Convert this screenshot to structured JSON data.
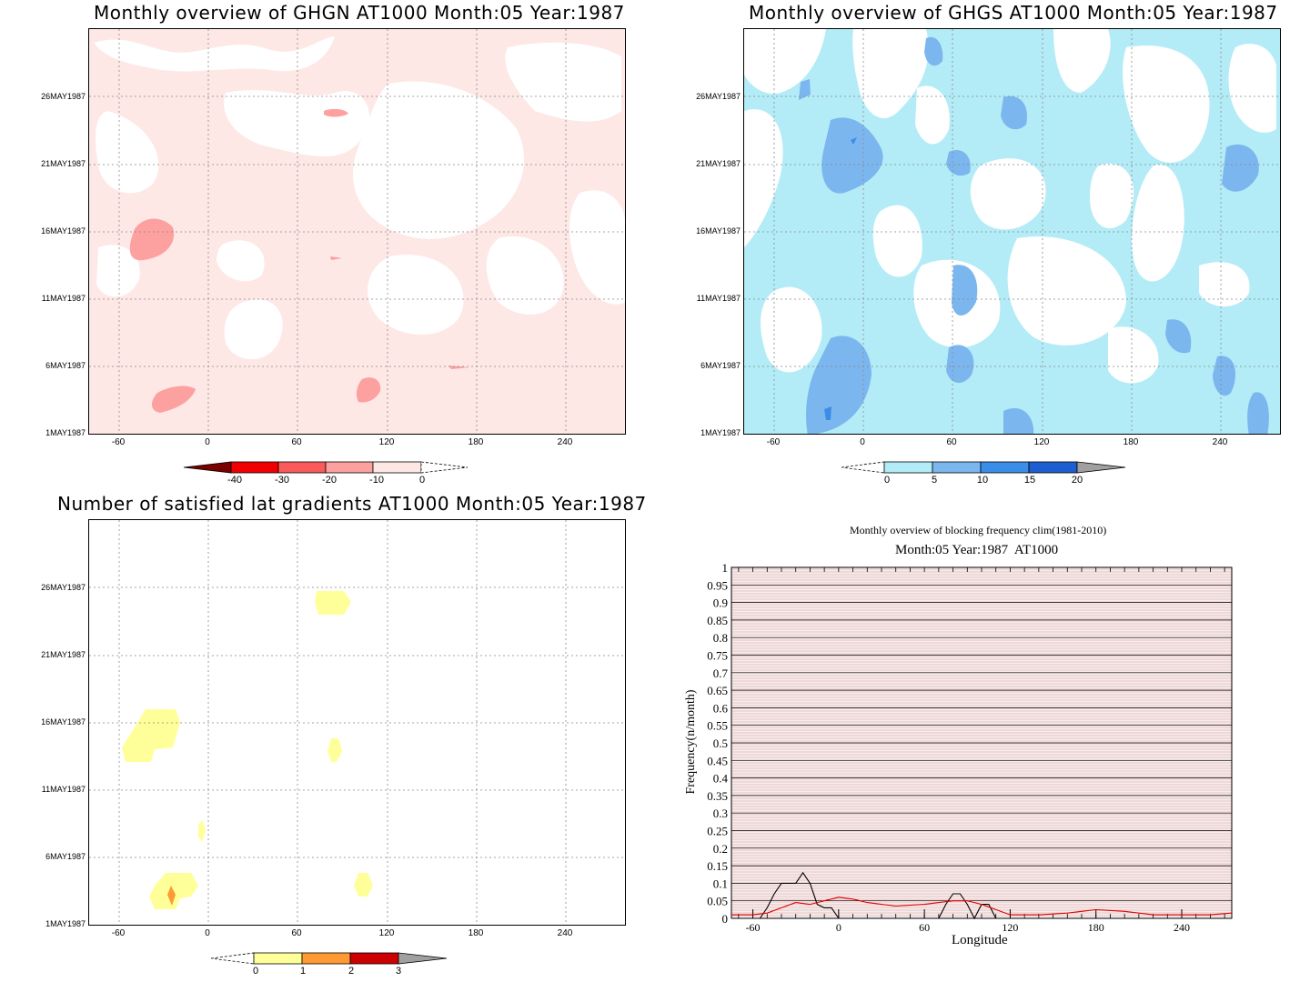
{
  "panels": {
    "ghgn": {
      "title": "Monthly overview of GHGN AT1000 Month:05 Year:1987",
      "colorbar_labels": [
        "-40",
        "-30",
        "-20",
        "-10",
        "0"
      ],
      "colors": {
        "c0": "#fde8e6",
        "c1": "#fca0a0",
        "c2": "#fa5a5a",
        "c3": "#f00000",
        "c4": "#7a0000"
      }
    },
    "ghgs": {
      "title": "Monthly overview of GHGS AT1000 Month:05 Year:1987",
      "colorbar_labels": [
        "0",
        "5",
        "10",
        "15",
        "20"
      ],
      "colors": {
        "c0": "#b3ecf7",
        "c1": "#7bb6ef",
        "c2": "#3b8ee8",
        "c3": "#1d5fd0",
        "over": "#a0a0a0"
      }
    },
    "gradients": {
      "title": "Number of satisfied lat gradients AT1000 Month:05 Year:1987",
      "colorbar_labels": [
        "0",
        "1",
        "2",
        "3"
      ],
      "colors": {
        "c0": "#ffff99",
        "c1": "#ff9933",
        "c2": "#cc0000",
        "over": "#a0a0a0"
      }
    }
  },
  "y_ticks": [
    "26MAY1987",
    "21MAY1987",
    "16MAY1987",
    "11MAY1987",
    "6MAY1987",
    "1MAY1987"
  ],
  "x_ticks": [
    "-60",
    "0",
    "60",
    "120",
    "180",
    "240"
  ],
  "chart_data": {
    "type": "line",
    "title": "Monthly overview of blocking frequency clim(1981-2010)",
    "subtitle": "Month:05 Year:1987  AT1000",
    "xlabel": "Longitude",
    "ylabel": "Frequency(n/month)",
    "xlim": [
      -75,
      275
    ],
    "ylim": [
      0,
      1
    ],
    "x_ticks": [
      -60,
      0,
      60,
      120,
      180,
      240
    ],
    "y_ticks": [
      "0",
      "0.05",
      "0.1",
      "0.15",
      "0.2",
      "0.25",
      "0.3",
      "0.35",
      "0.4",
      "0.45",
      "0.5",
      "0.55",
      "0.6",
      "0.65",
      "0.7",
      "0.75",
      "0.8",
      "0.85",
      "0.9",
      "0.95",
      "1"
    ],
    "series": [
      {
        "color": "#000000",
        "x": [
          -75,
          -55,
          -50,
          -45,
          -40,
          -35,
          -30,
          -25,
          -20,
          -15,
          -10,
          -5,
          0,
          5,
          70,
          75,
          80,
          85,
          90,
          95,
          100,
          105,
          110,
          115,
          275
        ],
        "y": [
          0,
          0,
          0.03,
          0.07,
          0.1,
          0.1,
          0.1,
          0.13,
          0.1,
          0.04,
          0.03,
          0.03,
          0,
          0,
          0,
          0.04,
          0.07,
          0.07,
          0.04,
          0,
          0.04,
          0.04,
          0,
          0,
          0
        ]
      },
      {
        "color": "#e00000",
        "x": [
          -75,
          -60,
          -50,
          -40,
          -30,
          -20,
          -10,
          0,
          10,
          20,
          40,
          60,
          80,
          90,
          100,
          110,
          120,
          140,
          160,
          180,
          200,
          220,
          240,
          260,
          275
        ],
        "y": [
          0.01,
          0.01,
          0.015,
          0.03,
          0.045,
          0.04,
          0.05,
          0.06,
          0.055,
          0.045,
          0.035,
          0.04,
          0.05,
          0.05,
          0.04,
          0.025,
          0.01,
          0.01,
          0.015,
          0.025,
          0.02,
          0.01,
          0.01,
          0.01,
          0.015
        ]
      }
    ]
  }
}
